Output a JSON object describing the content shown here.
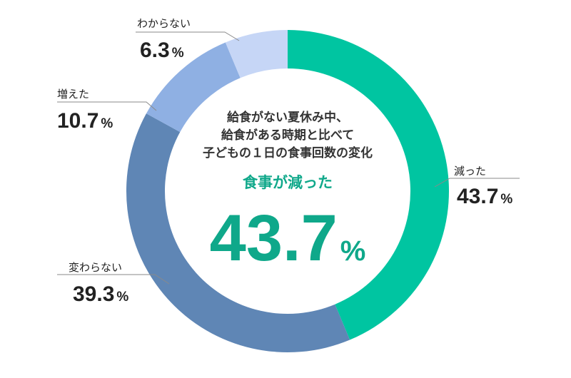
{
  "chart_data": {
    "type": "pie",
    "title_lines": [
      "給食がない夏休み中、",
      "給食がある時期と比べて",
      "子どもの１日の食事回数の変化"
    ],
    "highlight": {
      "label": "食事が減った",
      "value": "43.7",
      "unit": "%",
      "color": "#0fa88a"
    },
    "slices": [
      {
        "label": "減った",
        "value": 43.7,
        "value_text": "43.7",
        "unit": "%",
        "color": "#00c5a1"
      },
      {
        "label": "変わらない",
        "value": 39.3,
        "value_text": "39.3",
        "unit": "%",
        "color": "#5f86b5"
      },
      {
        "label": "増えた",
        "value": 10.7,
        "value_text": "10.7",
        "unit": "%",
        "color": "#8fb0e3"
      },
      {
        "label": "わからない",
        "value": 6.3,
        "value_text": "6.3",
        "unit": "%",
        "color": "#c6d6f6"
      }
    ]
  }
}
